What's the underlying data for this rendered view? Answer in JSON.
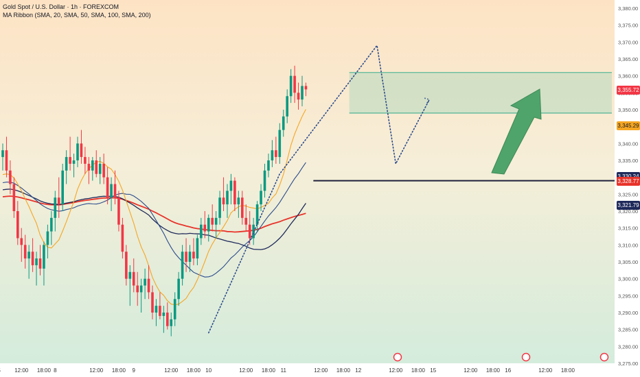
{
  "header": {
    "symbol_line": "Gold Spot / U.S. Dollar · 1h · FOREXCOM",
    "indicator_line": "MA Ribbon (SMA, 20, SMA, 50, SMA, 100, SMA, 200)"
  },
  "colors": {
    "up": "#089981",
    "down": "#f23645",
    "ma20": "#f5a623",
    "ma50": "#2b4b8c",
    "ma100": "#1f2a5a",
    "ma200": "#e8332a",
    "zone": "#5cb89a",
    "arrow": "#4fa46c",
    "level": "#1f1f3a"
  },
  "price_labels": [
    {
      "text": "3,355.72",
      "value": 3355.72,
      "color": "#f23645"
    },
    {
      "text": "3,345.29",
      "value": 3345.29,
      "color": "#f5a623",
      "text_color": "#131722"
    },
    {
      "text": "3,330.24",
      "value": 3330.24,
      "color": "#1f2a5a"
    },
    {
      "text": "3,328.77",
      "value": 3328.77,
      "color": "#e8332a"
    },
    {
      "text": "3,321.79",
      "value": 3321.79,
      "color": "#1f2a5a"
    }
  ],
  "chart_data": {
    "type": "candlestick",
    "title": "Gold Spot / U.S. Dollar · 1h · FOREXCOM",
    "ylim": [
      3275,
      3380
    ],
    "y_ticks": [
      "3,380.00",
      "3,375.00",
      "3,370.00",
      "3,365.00",
      "3,360.00",
      "3,355.00",
      "3,350.00",
      "3,345.00",
      "3,340.00",
      "3,335.00",
      "3,330.00",
      "3,325.00",
      "3,320.00",
      "3,315.00",
      "3,310.00",
      "3,305.00",
      "3,300.00",
      "3,295.00",
      "3,290.00",
      "3,285.00",
      "3,280.00",
      "3,275.00"
    ],
    "x_ticks": [
      {
        "label": "5",
        "bar": -1
      },
      {
        "label": "12:00",
        "bar": 5
      },
      {
        "label": "18:00",
        "bar": 11
      },
      {
        "label": "8",
        "bar": 14
      },
      {
        "label": "12:00",
        "bar": 25
      },
      {
        "label": "18:00",
        "bar": 31
      },
      {
        "label": "9",
        "bar": 35
      },
      {
        "label": "12:00",
        "bar": 45
      },
      {
        "label": "18:00",
        "bar": 51
      },
      {
        "label": "10",
        "bar": 55
      },
      {
        "label": "12:00",
        "bar": 65
      },
      {
        "label": "18:00",
        "bar": 71
      },
      {
        "label": "11",
        "bar": 75
      },
      {
        "label": "12:00",
        "bar": 85
      },
      {
        "label": "18:00",
        "bar": 91
      },
      {
        "label": "12",
        "bar": 95
      },
      {
        "label": "12:00",
        "bar": 105
      },
      {
        "label": "18:00",
        "bar": 111
      },
      {
        "label": "15",
        "bar": 115
      },
      {
        "label": "12:00",
        "bar": 125
      },
      {
        "label": "18:00",
        "bar": 131
      },
      {
        "label": "16",
        "bar": 135
      },
      {
        "label": "12:00",
        "bar": 145
      },
      {
        "label": "18:00",
        "bar": 151
      }
    ],
    "candles": [
      [
        3336,
        3340,
        3332,
        3338
      ],
      [
        3338,
        3342,
        3330,
        3332
      ],
      [
        3332,
        3335,
        3325,
        3328
      ],
      [
        3328,
        3330,
        3318,
        3320
      ],
      [
        3320,
        3323,
        3310,
        3312
      ],
      [
        3312,
        3315,
        3305,
        3310
      ],
      [
        3310,
        3313,
        3303,
        3306
      ],
      [
        3306,
        3310,
        3300,
        3308
      ],
      [
        3308,
        3312,
        3302,
        3304
      ],
      [
        3304,
        3308,
        3298,
        3306
      ],
      [
        3306,
        3310,
        3301,
        3303
      ],
      [
        3303,
        3311,
        3298,
        3310
      ],
      [
        3310,
        3316,
        3306,
        3314
      ],
      [
        3314,
        3320,
        3310,
        3318
      ],
      [
        3318,
        3326,
        3314,
        3324
      ],
      [
        3324,
        3330,
        3318,
        3322
      ],
      [
        3322,
        3334,
        3320,
        3332
      ],
      [
        3332,
        3338,
        3328,
        3336
      ],
      [
        3336,
        3342,
        3332,
        3334
      ],
      [
        3334,
        3337,
        3330,
        3335
      ],
      [
        3335,
        3342,
        3333,
        3340
      ],
      [
        3340,
        3344,
        3334,
        3336
      ],
      [
        3336,
        3339,
        3331,
        3334
      ],
      [
        3334,
        3336,
        3328,
        3332
      ],
      [
        3332,
        3336,
        3329,
        3335
      ],
      [
        3335,
        3338,
        3330,
        3331
      ],
      [
        3331,
        3336,
        3328,
        3334
      ],
      [
        3334,
        3337,
        3328,
        3330
      ],
      [
        3330,
        3333,
        3322,
        3324
      ],
      [
        3324,
        3330,
        3320,
        3328
      ],
      [
        3328,
        3332,
        3322,
        3324
      ],
      [
        3324,
        3326,
        3314,
        3316
      ],
      [
        3316,
        3318,
        3306,
        3308
      ],
      [
        3308,
        3310,
        3298,
        3300
      ],
      [
        3300,
        3304,
        3292,
        3302
      ],
      [
        3302,
        3306,
        3296,
        3298
      ],
      [
        3298,
        3302,
        3292,
        3296
      ],
      [
        3296,
        3300,
        3290,
        3298
      ],
      [
        3298,
        3303,
        3294,
        3300
      ],
      [
        3300,
        3304,
        3294,
        3296
      ],
      [
        3296,
        3298,
        3288,
        3290
      ],
      [
        3290,
        3294,
        3286,
        3292
      ],
      [
        3292,
        3296,
        3288,
        3289
      ],
      [
        3289,
        3292,
        3284,
        3290
      ],
      [
        3290,
        3293,
        3285,
        3286
      ],
      [
        3286,
        3290,
        3283,
        3288
      ],
      [
        3288,
        3296,
        3286,
        3294
      ],
      [
        3294,
        3302,
        3292,
        3300
      ],
      [
        3300,
        3310,
        3298,
        3308
      ],
      [
        3308,
        3312,
        3302,
        3305
      ],
      [
        3305,
        3310,
        3302,
        3308
      ],
      [
        3308,
        3312,
        3304,
        3306
      ],
      [
        3306,
        3313,
        3304,
        3312
      ],
      [
        3312,
        3318,
        3310,
        3316
      ],
      [
        3316,
        3320,
        3312,
        3314
      ],
      [
        3314,
        3319,
        3311,
        3318
      ],
      [
        3318,
        3322,
        3314,
        3316
      ],
      [
        3316,
        3320,
        3312,
        3318
      ],
      [
        3318,
        3326,
        3316,
        3324
      ],
      [
        3324,
        3330,
        3320,
        3322
      ],
      [
        3322,
        3328,
        3318,
        3326
      ],
      [
        3326,
        3331,
        3322,
        3329
      ],
      [
        3329,
        3330,
        3320,
        3322
      ],
      [
        3322,
        3326,
        3318,
        3324
      ],
      [
        3324,
        3326,
        3316,
        3318
      ],
      [
        3318,
        3322,
        3314,
        3316
      ],
      [
        3316,
        3320,
        3310,
        3312
      ],
      [
        3312,
        3318,
        3310,
        3316
      ],
      [
        3316,
        3323,
        3314,
        3322
      ],
      [
        3322,
        3328,
        3320,
        3326
      ],
      [
        3326,
        3334,
        3324,
        3332
      ],
      [
        3332,
        3337,
        3330,
        3335
      ],
      [
        3335,
        3341,
        3333,
        3338
      ],
      [
        3338,
        3342,
        3334,
        3336
      ],
      [
        3336,
        3346,
        3334,
        3344
      ],
      [
        3344,
        3350,
        3342,
        3348
      ],
      [
        3348,
        3356,
        3346,
        3354
      ],
      [
        3354,
        3362,
        3352,
        3360
      ],
      [
        3360,
        3363,
        3352,
        3355
      ],
      [
        3355,
        3358,
        3350,
        3353
      ],
      [
        3353,
        3360,
        3351,
        3357
      ],
      [
        3357,
        3358,
        3354,
        3356
      ]
    ],
    "zone": {
      "top": 3361,
      "bottom": 3349
    },
    "level": 3329,
    "arrow": {
      "from": [
        3.5,
        0.42
      ],
      "to": [
        0.95,
        0.78
      ]
    }
  }
}
